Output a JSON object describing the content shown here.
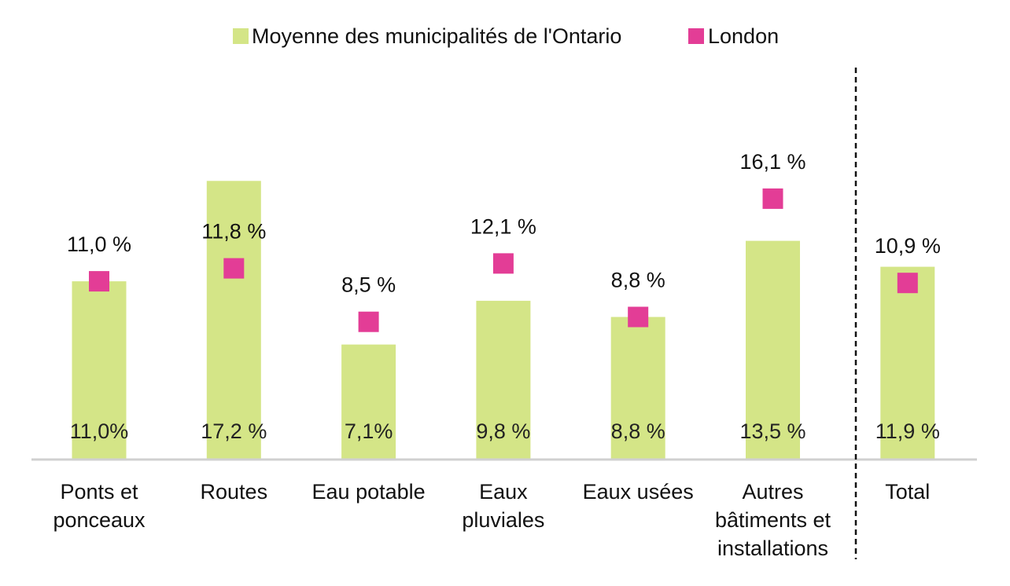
{
  "chart_data": {
    "type": "bar",
    "categories": [
      [
        "Ponts et",
        "ponceaux"
      ],
      [
        "Routes"
      ],
      [
        "Eau potable"
      ],
      [
        "Eaux",
        "pluviales"
      ],
      [
        "Eaux usées"
      ],
      [
        "Autres",
        "bâtiments et",
        "installations"
      ],
      [
        "Total"
      ]
    ],
    "series": [
      {
        "name": "Moyenne des municipalités de l'Ontario",
        "type": "bar",
        "color": "#d4e587",
        "values": [
          11.0,
          17.2,
          7.1,
          9.8,
          8.8,
          13.5,
          11.9
        ],
        "labels": [
          "11,0%",
          "17,2 %",
          "7,1%",
          "9,8 %",
          "8,8 %",
          "13,5 %",
          "11,9 %"
        ]
      },
      {
        "name": "London",
        "type": "marker",
        "color": "#e33d96",
        "values": [
          11.0,
          11.8,
          8.5,
          12.1,
          8.8,
          16.1,
          10.9
        ],
        "labels": [
          "11,0 %",
          "11,8 %",
          "8,5 %",
          "12,1 %",
          "8,8 %",
          "16,1 %",
          "10,9 %"
        ]
      }
    ],
    "ylim": [
      0,
      24
    ],
    "grid": false,
    "legend_position": "top-center",
    "separator_before_last": true
  }
}
